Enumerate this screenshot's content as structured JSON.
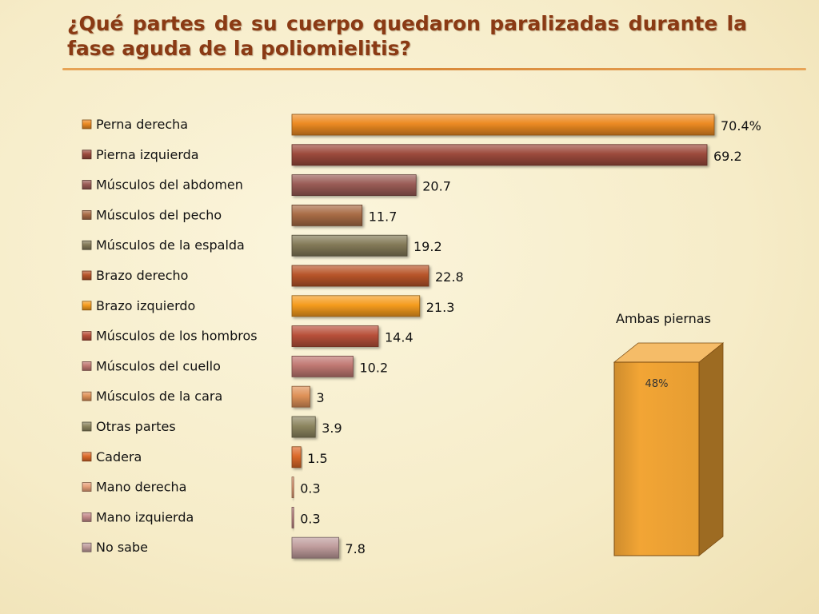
{
  "title": "¿Qué partes de su cuerpo quedaron paralizadas durante la fase aguda de la poliomielitis?",
  "chart_data": [
    {
      "type": "bar",
      "orientation": "horizontal",
      "categories": [
        "Perna derecha",
        "Pierna izquierda",
        "Músculos del abdomen",
        "Músculos del pecho",
        "Músculos de la espalda",
        "Brazo derecho",
        "Brazo izquierdo",
        "Músculos de los hombros",
        "Músculos del cuello",
        "Músculos de la cara",
        "Otras partes",
        "Cadera",
        "Mano derecha",
        "Mano izquierda",
        "No sabe"
      ],
      "values": [
        70.4,
        69.2,
        20.7,
        11.7,
        19.2,
        22.8,
        21.3,
        14.4,
        10.2,
        3,
        3.9,
        1.5,
        0.3,
        0.3,
        7.8
      ],
      "value_labels": [
        "70.4%",
        "69.2",
        "20.7",
        "11.7",
        "19.2",
        "22.8",
        "21.3",
        "14.4",
        "10.2",
        "3",
        "3.9",
        "1.5",
        "0.3",
        "0.3",
        "7.8"
      ],
      "colors": [
        "#ec8a22",
        "#9c4a3c",
        "#9a5c56",
        "#a96c46",
        "#847a58",
        "#b8552a",
        "#f59c1e",
        "#b8503a",
        "#c07872",
        "#df9258",
        "#8d8660",
        "#dc6a2a",
        "#e6a07a",
        "#c48a8a",
        "#bf9c9c"
      ],
      "xlim": [
        0,
        72
      ],
      "legend": "left"
    },
    {
      "type": "bar",
      "title": "Ambas piernas",
      "categories": [
        ""
      ],
      "values": [
        48
      ],
      "value_labels": [
        "48%"
      ],
      "colors": [
        "#f2a535"
      ],
      "ylim": [
        0,
        48
      ]
    }
  ]
}
